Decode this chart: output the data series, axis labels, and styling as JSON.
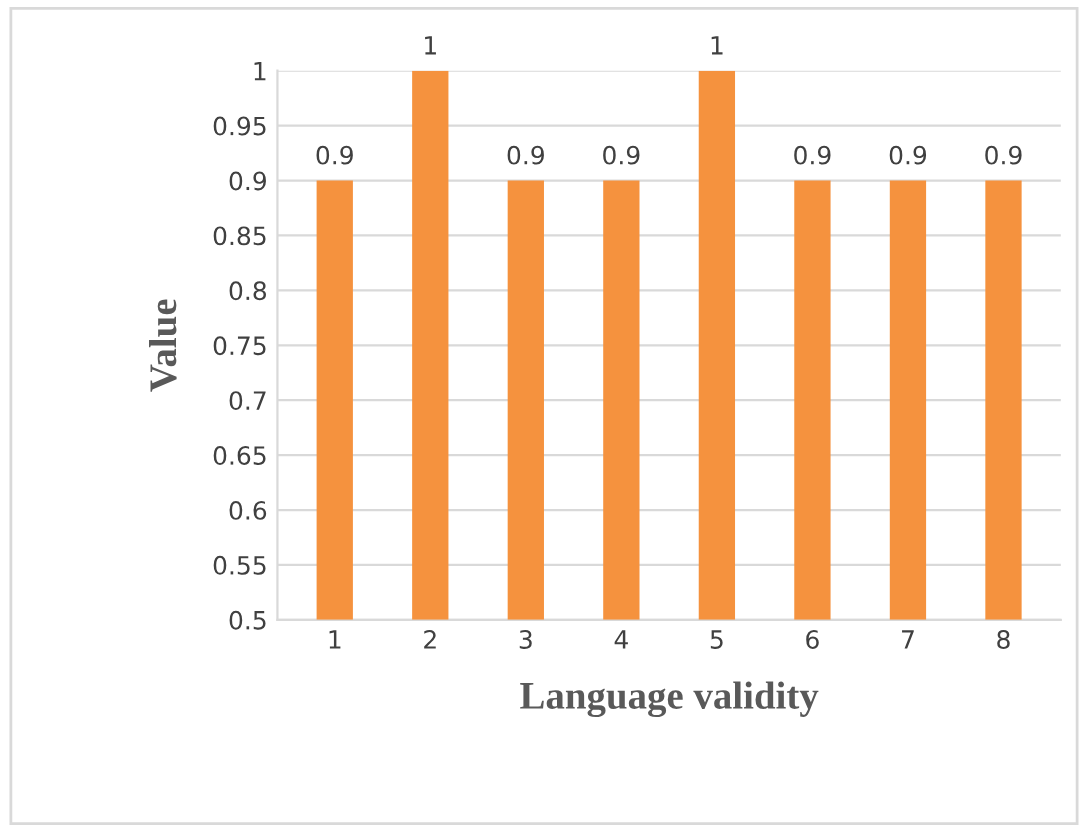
{
  "chart_data": {
    "type": "bar",
    "xlabel": "Language validity",
    "ylabel": "Value",
    "categories": [
      "1",
      "2",
      "3",
      "4",
      "5",
      "6",
      "7",
      "8"
    ],
    "values": [
      0.9,
      1,
      0.9,
      0.9,
      1,
      0.9,
      0.9,
      0.9
    ],
    "color": "#f5923e",
    "ylim": [
      0.5,
      1
    ],
    "yticks": [
      0.5,
      0.55,
      0.6,
      0.65,
      0.7,
      0.75,
      0.8,
      0.85,
      0.9,
      0.95,
      1
    ],
    "grid": "y",
    "data_labels": true
  }
}
